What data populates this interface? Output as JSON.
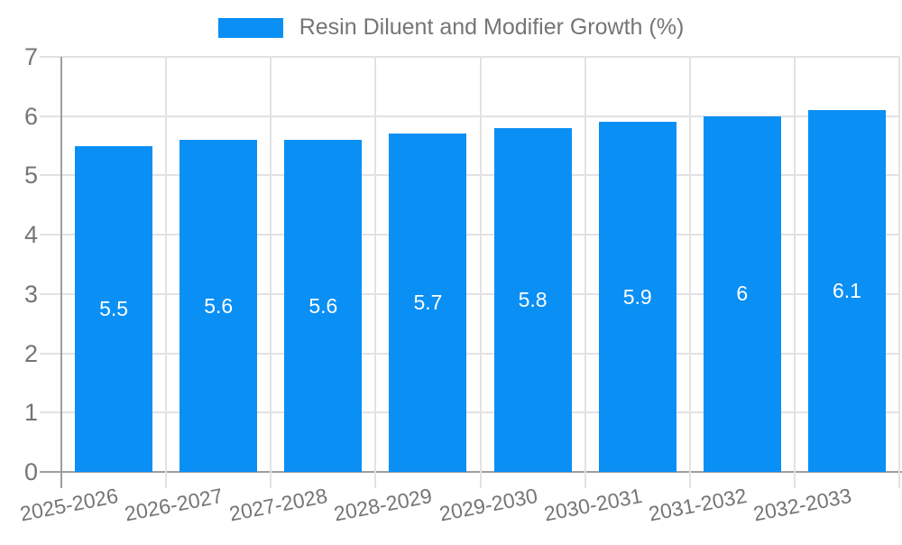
{
  "legend": {
    "swatch_color": "#0A8FF4",
    "label": "Resin Diluent and Modifier Growth (%)"
  },
  "chart_data": {
    "type": "bar",
    "title": "Resin Diluent and Modifier Growth (%)",
    "categories": [
      "2025-2026",
      "2026-2027",
      "2027-2028",
      "2028-2029",
      "2029-2030",
      "2030-2031",
      "2031-2032",
      "2032-2033"
    ],
    "values": [
      5.5,
      5.6,
      5.6,
      5.7,
      5.8,
      5.9,
      6,
      6.1
    ],
    "value_labels": [
      "5.5",
      "5.6",
      "5.6",
      "5.7",
      "5.8",
      "5.9",
      "6",
      "6.1"
    ],
    "xlabel": "",
    "ylabel": "",
    "ylim": [
      0,
      7
    ],
    "y_ticks": [
      0,
      1,
      2,
      3,
      4,
      5,
      6,
      7
    ],
    "grid": true,
    "legend_position": "top-center",
    "colors": {
      "bar": "#0A8FF4",
      "grid": "#e2e2e4",
      "axis": "#9e9e9e",
      "text": "#757575",
      "value_label": "#ffffff",
      "background": "#ffffff"
    }
  }
}
